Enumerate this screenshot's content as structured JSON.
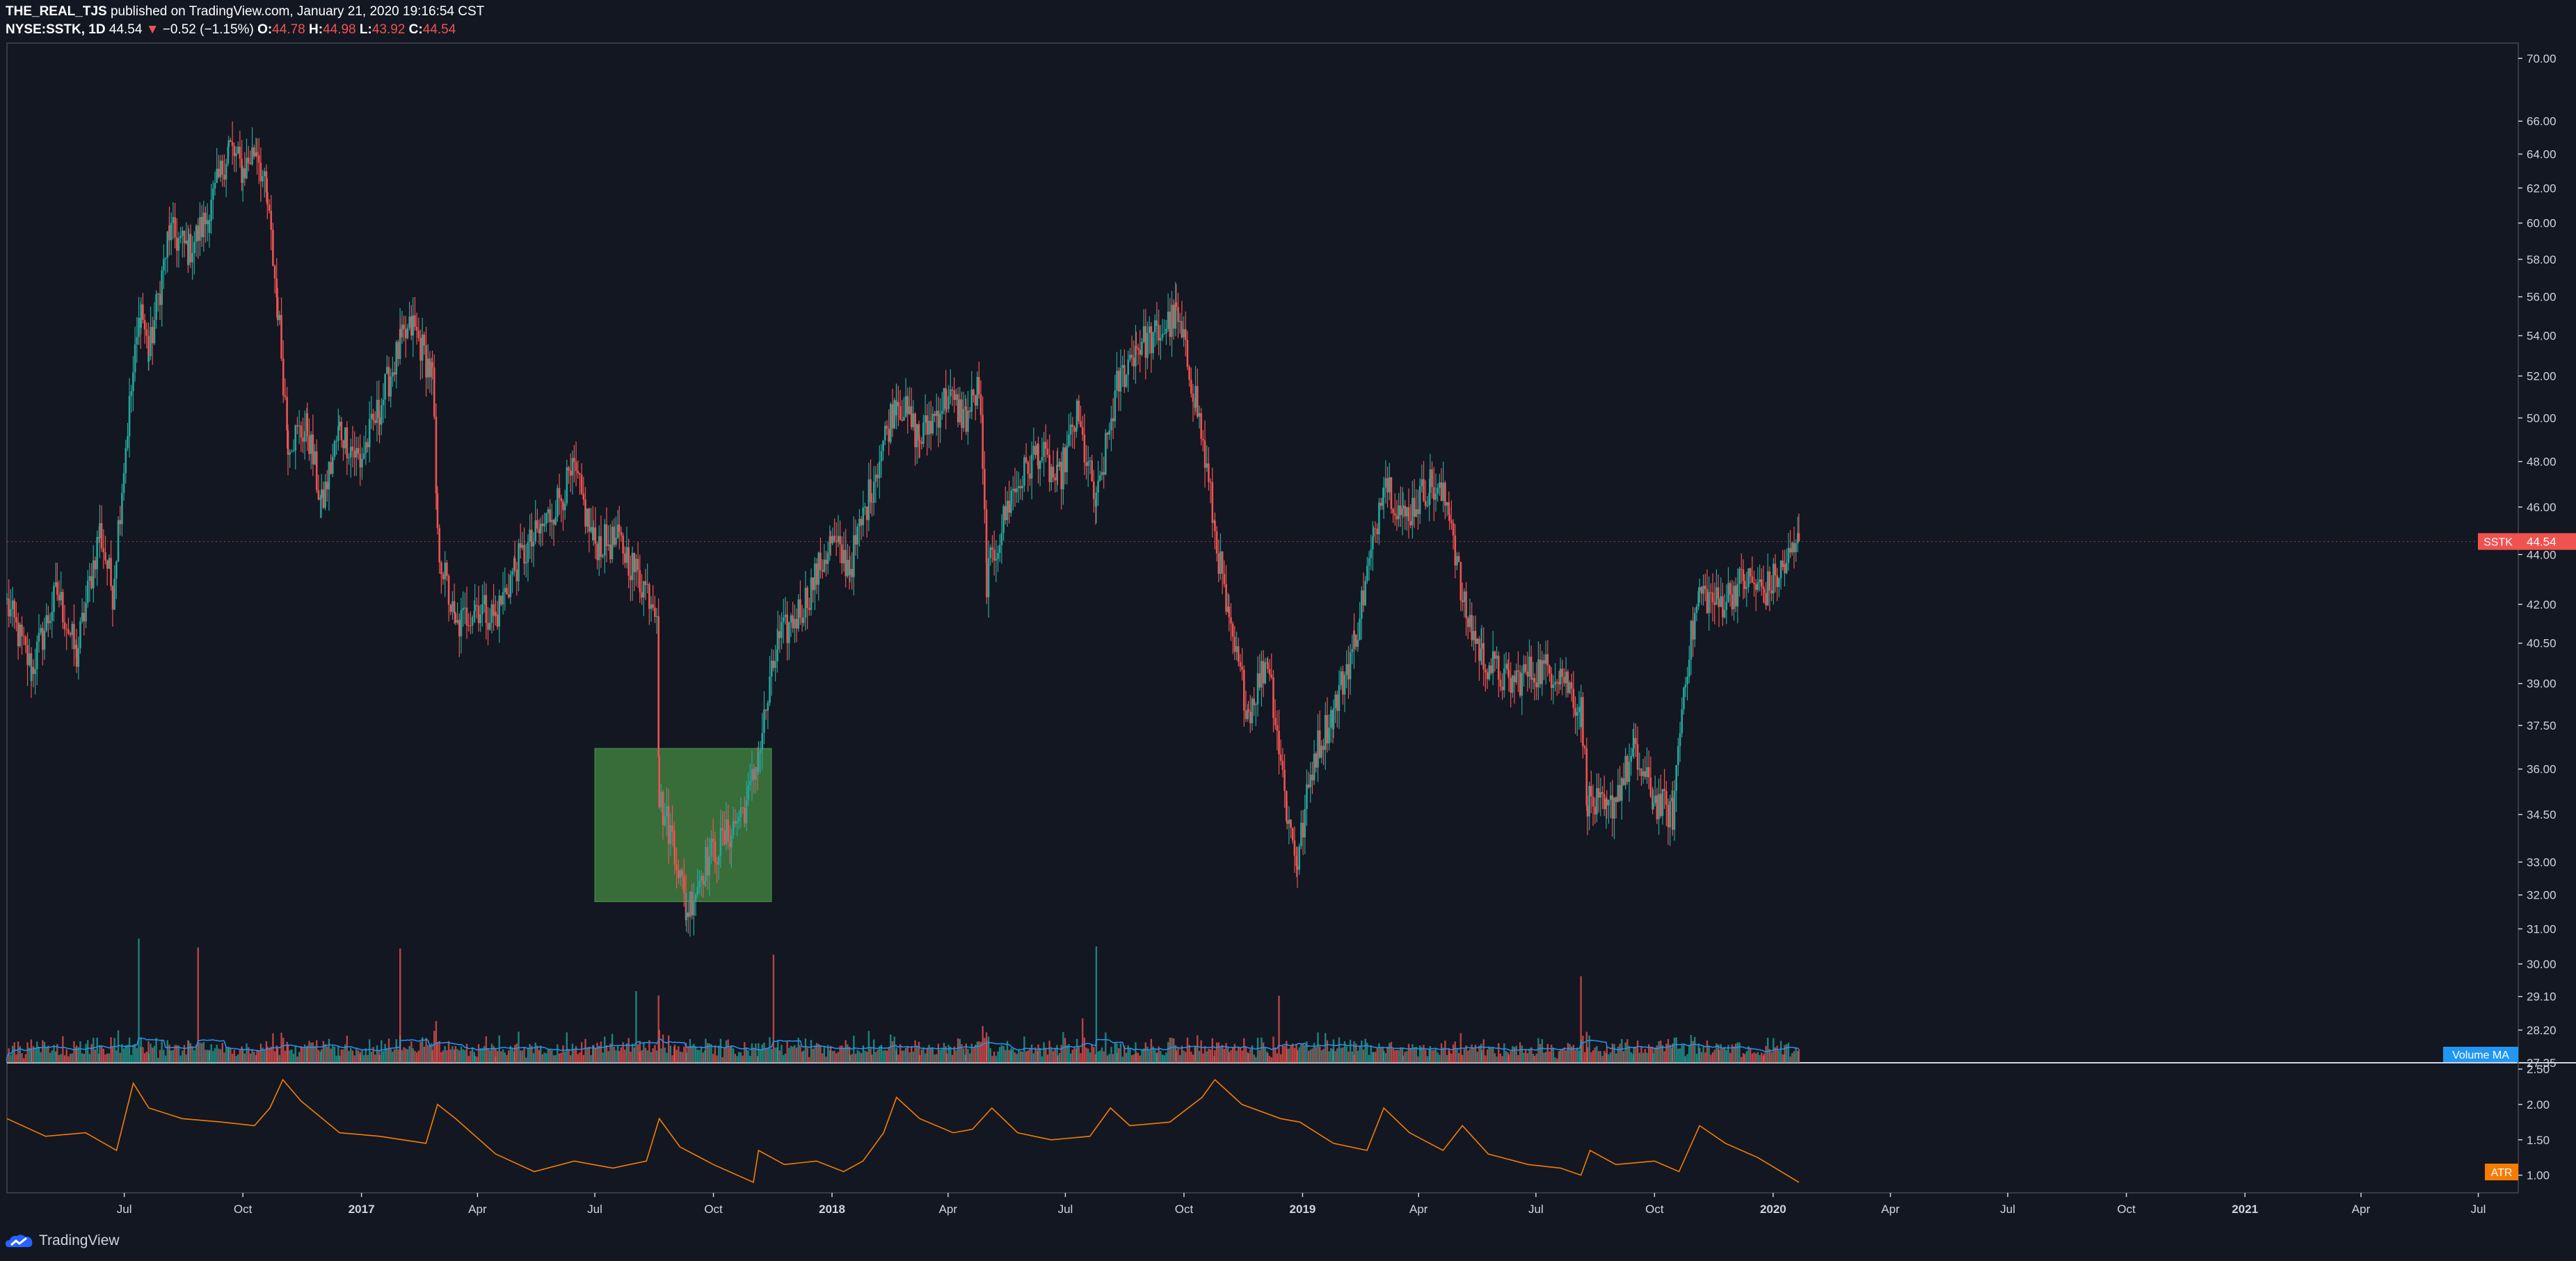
{
  "header": {
    "author": "THE_REAL_TJS",
    "published_text": "published on TradingView.com, January 21, 2020 19:16:54 CST",
    "symbol": "NYSE:SSTK, 1D",
    "last": "44.54",
    "change_arrow": "▼",
    "change": "−0.52 (−1.15%)",
    "o_label": "O:",
    "o_value": "44.78",
    "h_label": "H:",
    "h_value": "44.98",
    "l_label": "L:",
    "l_value": "43.92",
    "c_label": "C:",
    "c_value": "44.54"
  },
  "logo_text": "TradingView",
  "colors": {
    "background": "#131722",
    "up": "#26a69a",
    "down": "#ef5350",
    "grid": "#363a45",
    "text": "#d1d4dc",
    "atr_line": "#f57c00",
    "volume_ma": "#2196f3",
    "zone": "#3f7d3e"
  },
  "chart_data": [
    {
      "type": "candlestick",
      "symbol": "SSTK",
      "interval": "1D",
      "price_label": "SSTK",
      "last_price": "44.54",
      "y_scale": "log",
      "ylim": [
        27.35,
        71.0
      ],
      "y_ticks": [
        "70.00",
        "66.00",
        "64.00",
        "62.00",
        "60.00",
        "58.00",
        "56.00",
        "54.00",
        "52.00",
        "50.00",
        "48.00",
        "46.00",
        "44.00",
        "42.00",
        "40.50",
        "39.00",
        "37.50",
        "36.00",
        "34.50",
        "33.00",
        "32.00",
        "31.00",
        "30.00",
        "29.10",
        "28.20",
        "27.35"
      ],
      "x_ticks": [
        "Jul",
        "Oct",
        "2017",
        "Apr",
        "Jul",
        "Oct",
        "2018",
        "Apr",
        "Jul",
        "Oct",
        "2019",
        "Apr",
        "Jul",
        "Oct",
        "2020",
        "Apr",
        "Jul",
        "Oct",
        "2021",
        "Apr",
        "Jul"
      ],
      "xlim": [
        "2016-04-01",
        "2021-08-01"
      ],
      "price_path": [
        [
          "2016-04-01",
          42.0
        ],
        [
          "2016-04-20",
          39.5
        ],
        [
          "2016-05-10",
          42.5
        ],
        [
          "2016-05-25",
          40.0
        ],
        [
          "2016-06-12",
          45.0
        ],
        [
          "2016-06-22",
          42.5
        ],
        [
          "2016-07-05",
          50.5
        ],
        [
          "2016-07-14",
          55.5
        ],
        [
          "2016-07-20",
          53.0
        ],
        [
          "2016-08-05",
          59.5
        ],
        [
          "2016-08-20",
          58.5
        ],
        [
          "2016-09-05",
          60.5
        ],
        [
          "2016-09-20",
          64.5
        ],
        [
          "2016-10-01",
          63.0
        ],
        [
          "2016-10-12",
          64.5
        ],
        [
          "2016-10-20",
          61.0
        ],
        [
          "2016-10-28",
          55.5
        ],
        [
          "2016-11-05",
          49.0
        ],
        [
          "2016-11-20",
          49.5
        ],
        [
          "2016-12-01",
          46.0
        ],
        [
          "2016-12-15",
          49.5
        ],
        [
          "2016-12-31",
          48.0
        ],
        [
          "2017-01-15",
          50.5
        ],
        [
          "2017-01-31",
          53.5
        ],
        [
          "2017-02-10",
          54.5
        ],
        [
          "2017-02-25",
          52.0
        ],
        [
          "2017-03-01",
          44.5
        ],
        [
          "2017-03-15",
          41.0
        ],
        [
          "2017-03-30",
          42.0
        ],
        [
          "2017-04-15",
          41.5
        ],
        [
          "2017-04-30",
          43.5
        ],
        [
          "2017-05-20",
          45.0
        ],
        [
          "2017-06-15",
          47.5
        ],
        [
          "2017-06-30",
          44.5
        ],
        [
          "2017-07-20",
          44.5
        ],
        [
          "2017-08-05",
          43.0
        ],
        [
          "2017-08-18",
          42.0
        ],
        [
          "2017-08-20",
          35.0
        ],
        [
          "2017-09-01",
          33.5
        ],
        [
          "2017-09-10",
          31.5
        ],
        [
          "2017-09-25",
          33.0
        ],
        [
          "2017-10-15",
          34.0
        ],
        [
          "2017-10-28",
          35.0
        ],
        [
          "2017-11-05",
          36.5
        ],
        [
          "2017-11-20",
          40.5
        ],
        [
          "2017-12-10",
          42.0
        ],
        [
          "2017-12-31",
          44.5
        ],
        [
          "2018-01-15",
          43.5
        ],
        [
          "2018-02-01",
          47.0
        ],
        [
          "2018-02-20",
          51.0
        ],
        [
          "2018-03-10",
          49.0
        ],
        [
          "2018-03-31",
          51.0
        ],
        [
          "2018-04-15",
          50.0
        ],
        [
          "2018-04-25",
          51.5
        ],
        [
          "2018-05-01",
          43.0
        ],
        [
          "2018-05-20",
          46.5
        ],
        [
          "2018-06-10",
          48.5
        ],
        [
          "2018-06-25",
          47.0
        ],
        [
          "2018-07-10",
          50.0
        ],
        [
          "2018-07-25",
          46.0
        ],
        [
          "2018-08-10",
          51.5
        ],
        [
          "2018-08-25",
          53.5
        ],
        [
          "2018-09-10",
          54.0
        ],
        [
          "2018-09-25",
          55.0
        ],
        [
          "2018-10-10",
          51.0
        ],
        [
          "2018-10-25",
          45.0
        ],
        [
          "2018-11-05",
          41.0
        ],
        [
          "2018-11-20",
          38.0
        ],
        [
          "2018-12-05",
          40.0
        ],
        [
          "2018-12-20",
          34.5
        ],
        [
          "2018-12-28",
          33.0
        ],
        [
          "2019-01-10",
          36.5
        ],
        [
          "2019-01-25",
          38.0
        ],
        [
          "2019-02-10",
          40.5
        ],
        [
          "2019-02-25",
          44.5
        ],
        [
          "2019-03-05",
          47.5
        ],
        [
          "2019-03-20",
          45.5
        ],
        [
          "2019-04-10",
          47.0
        ],
        [
          "2019-04-25",
          46.0
        ],
        [
          "2019-05-05",
          42.0
        ],
        [
          "2019-05-20",
          40.0
        ],
        [
          "2019-06-10",
          39.0
        ],
        [
          "2019-06-30",
          39.5
        ],
        [
          "2019-07-20",
          39.5
        ],
        [
          "2019-08-05",
          38.0
        ],
        [
          "2019-08-10",
          35.0
        ],
        [
          "2019-08-25",
          34.5
        ],
        [
          "2019-09-15",
          36.5
        ],
        [
          "2019-09-30",
          35.0
        ],
        [
          "2019-10-15",
          34.5
        ],
        [
          "2019-10-25",
          39.5
        ],
        [
          "2019-11-05",
          42.5
        ],
        [
          "2019-11-20",
          42.0
        ],
        [
          "2019-12-10",
          43.0
        ],
        [
          "2019-12-25",
          42.5
        ],
        [
          "2020-01-10",
          43.5
        ],
        [
          "2020-01-21",
          44.54
        ]
      ],
      "annotations": [
        {
          "type": "rectangle",
          "label": "",
          "from": "2017-07-01",
          "to": "2017-11-15",
          "price_from": 31.8,
          "price_to": 36.7
        }
      ]
    },
    {
      "type": "bar",
      "name": "Volume",
      "indicator_label": "Volume MA",
      "note": "overlaid at bottom of price pane, per-day volume bars with moving average line"
    },
    {
      "type": "line",
      "name": "ATR",
      "indicator_label": "ATR",
      "y_ticks": [
        "2.50",
        "2.00",
        "1.50",
        "1.00"
      ],
      "ylim": [
        0.75,
        2.55
      ],
      "values": [
        [
          "2016-04-01",
          1.8
        ],
        [
          "2016-05-01",
          1.55
        ],
        [
          "2016-06-01",
          1.6
        ],
        [
          "2016-06-25",
          1.35
        ],
        [
          "2016-07-08",
          2.3
        ],
        [
          "2016-07-20",
          1.95
        ],
        [
          "2016-08-15",
          1.8
        ],
        [
          "2016-09-15",
          1.75
        ],
        [
          "2016-10-10",
          1.7
        ],
        [
          "2016-10-22",
          1.95
        ],
        [
          "2016-11-01",
          2.35
        ],
        [
          "2016-11-15",
          2.05
        ],
        [
          "2016-12-15",
          1.6
        ],
        [
          "2017-01-15",
          1.55
        ],
        [
          "2017-02-20",
          1.45
        ],
        [
          "2017-03-01",
          2.0
        ],
        [
          "2017-03-15",
          1.8
        ],
        [
          "2017-04-15",
          1.3
        ],
        [
          "2017-05-15",
          1.05
        ],
        [
          "2017-06-15",
          1.2
        ],
        [
          "2017-07-15",
          1.1
        ],
        [
          "2017-08-10",
          1.2
        ],
        [
          "2017-08-20",
          1.8
        ],
        [
          "2017-09-05",
          1.4
        ],
        [
          "2017-10-01",
          1.15
        ],
        [
          "2017-11-01",
          0.9
        ],
        [
          "2017-11-05",
          1.35
        ],
        [
          "2017-11-25",
          1.15
        ],
        [
          "2017-12-20",
          1.2
        ],
        [
          "2018-01-10",
          1.05
        ],
        [
          "2018-01-25",
          1.2
        ],
        [
          "2018-02-10",
          1.6
        ],
        [
          "2018-02-20",
          2.1
        ],
        [
          "2018-03-10",
          1.8
        ],
        [
          "2018-04-05",
          1.6
        ],
        [
          "2018-04-20",
          1.65
        ],
        [
          "2018-05-05",
          1.95
        ],
        [
          "2018-05-25",
          1.6
        ],
        [
          "2018-06-20",
          1.5
        ],
        [
          "2018-07-20",
          1.55
        ],
        [
          "2018-08-05",
          1.95
        ],
        [
          "2018-08-20",
          1.7
        ],
        [
          "2018-09-20",
          1.75
        ],
        [
          "2018-10-15",
          2.1
        ],
        [
          "2018-10-25",
          2.35
        ],
        [
          "2018-11-15",
          2.0
        ],
        [
          "2018-12-15",
          1.8
        ],
        [
          "2018-12-30",
          1.75
        ],
        [
          "2019-01-25",
          1.45
        ],
        [
          "2019-02-20",
          1.35
        ],
        [
          "2019-03-05",
          1.95
        ],
        [
          "2019-03-25",
          1.6
        ],
        [
          "2019-04-20",
          1.35
        ],
        [
          "2019-05-05",
          1.7
        ],
        [
          "2019-05-25",
          1.3
        ],
        [
          "2019-06-25",
          1.15
        ],
        [
          "2019-07-20",
          1.1
        ],
        [
          "2019-08-05",
          1.0
        ],
        [
          "2019-08-12",
          1.35
        ],
        [
          "2019-09-01",
          1.15
        ],
        [
          "2019-10-01",
          1.2
        ],
        [
          "2019-10-20",
          1.05
        ],
        [
          "2019-11-05",
          1.7
        ],
        [
          "2019-11-25",
          1.45
        ],
        [
          "2019-12-20",
          1.25
        ],
        [
          "2020-01-21",
          0.9
        ]
      ]
    }
  ]
}
